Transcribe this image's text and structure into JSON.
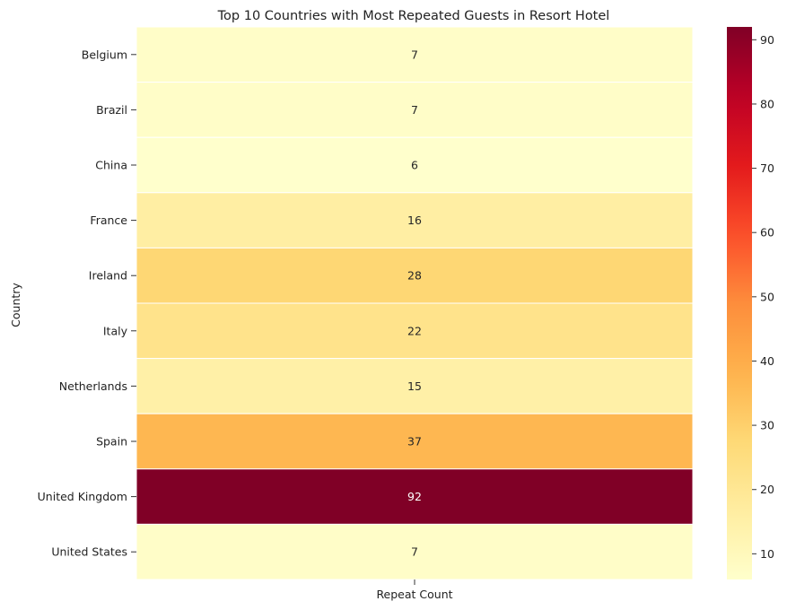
{
  "chart_data": {
    "type": "heatmap",
    "title": "Top 10 Countries with Most Repeated Guests in Resort Hotel",
    "xlabel": "",
    "ylabel": "Country",
    "x_categories": [
      "Repeat Count"
    ],
    "y_categories": [
      "Belgium",
      "Brazil",
      "China",
      "France",
      "Ireland",
      "Italy",
      "Netherlands",
      "Spain",
      "United Kingdom",
      "United States"
    ],
    "values": [
      7,
      7,
      6,
      16,
      28,
      22,
      15,
      37,
      92,
      7
    ],
    "colormap": "YlOrRd",
    "colorbar": {
      "range": [
        6,
        92
      ],
      "ticks": [
        10,
        20,
        30,
        40,
        50,
        60,
        70,
        80,
        90
      ]
    },
    "cell_border_color": "#ffffff",
    "annotations": true
  }
}
